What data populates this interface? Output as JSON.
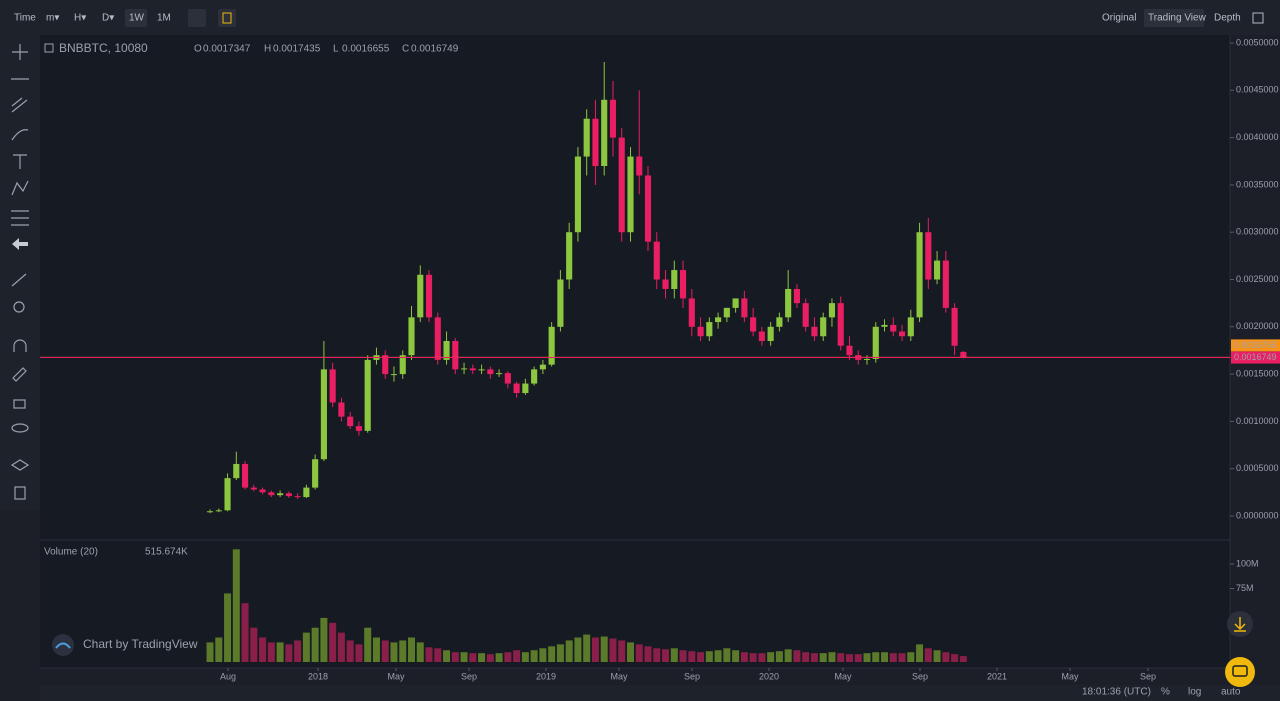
{
  "ui": {
    "toolbar": [
      "Time",
      "m▾",
      "H▾",
      "D▾",
      "1W",
      "1M"
    ],
    "views": [
      "Original",
      "Trading View",
      "Depth"
    ],
    "symbol": "BNBBTC, 10080",
    "ohlc_letters": [
      "O",
      "H",
      "L",
      "C"
    ],
    "ohlc_values": [
      0.0017347,
      0.0017435,
      0.0016655,
      0.0016749
    ],
    "volume_title": "Volume (20)",
    "volume_value": "515.674K",
    "watermark": "Chart by TradingView",
    "status": [
      "18:01:36 (UTC)",
      "%",
      "log",
      "auto"
    ]
  },
  "chart_data": [
    {
      "type": "candlestick",
      "up_color": "#8dc63f",
      "down_color": "#e91e63",
      "open": [
        4e-05,
        5e-05,
        6e-05,
        0.0004,
        0.00055,
        0.0003,
        0.00028,
        0.00025,
        0.00022,
        0.00024,
        0.00021,
        0.0002,
        0.0003,
        0.0006,
        0.00155,
        0.0012,
        0.00105,
        0.00095,
        0.0009,
        0.00165,
        0.0017,
        0.0015,
        0.0015,
        0.0017,
        0.0021,
        0.00255,
        0.0021,
        0.00165,
        0.00185,
        0.00155,
        0.00156,
        0.00154,
        0.00155,
        0.0015,
        0.00151,
        0.0014,
        0.0013,
        0.0014,
        0.00155,
        0.0016,
        0.002,
        0.0025,
        0.003,
        0.0038,
        0.0042,
        0.0037,
        0.0044,
        0.004,
        0.003,
        0.0038,
        0.0036,
        0.0029,
        0.0025,
        0.0024,
        0.0026,
        0.0023,
        0.002,
        0.0019,
        0.00205,
        0.0021,
        0.0022,
        0.0023,
        0.0021,
        0.00195,
        0.00185,
        0.002,
        0.0021,
        0.0024,
        0.00225,
        0.002,
        0.0019,
        0.0021,
        0.00225,
        0.0018,
        0.0017,
        0.00165,
        0.00166,
        0.002,
        0.00202,
        0.00195,
        0.0019,
        0.0021,
        0.003,
        0.0025,
        0.0027,
        0.0022,
        0.0017347
      ],
      "high": [
        7e-05,
        8e-05,
        0.00045,
        0.00068,
        0.00058,
        0.00033,
        0.0003,
        0.00027,
        0.00027,
        0.00026,
        0.00024,
        0.00033,
        0.00065,
        0.00185,
        0.00162,
        0.00125,
        0.0011,
        0.001,
        0.0017,
        0.00178,
        0.00175,
        0.00158,
        0.00175,
        0.00222,
        0.00265,
        0.0026,
        0.00215,
        0.00195,
        0.00188,
        0.00162,
        0.0016,
        0.0016,
        0.00158,
        0.00155,
        0.00153,
        0.00142,
        0.00145,
        0.00158,
        0.00165,
        0.00205,
        0.0026,
        0.0031,
        0.0039,
        0.0043,
        0.0044,
        0.0048,
        0.0046,
        0.0041,
        0.0039,
        0.0045,
        0.0037,
        0.003,
        0.0026,
        0.0027,
        0.0027,
        0.0024,
        0.0021,
        0.0021,
        0.00215,
        0.0022,
        0.00228,
        0.00238,
        0.0022,
        0.002,
        0.00205,
        0.00215,
        0.0026,
        0.00245,
        0.0023,
        0.0021,
        0.00215,
        0.0023,
        0.00232,
        0.0019,
        0.00175,
        0.0017,
        0.00205,
        0.00208,
        0.0021,
        0.00202,
        0.00218,
        0.0031,
        0.00315,
        0.0028,
        0.0028,
        0.00225,
        0.0017435
      ],
      "low": [
        3e-05,
        4e-05,
        5e-05,
        0.00038,
        0.00028,
        0.00026,
        0.00023,
        0.0002,
        0.0002,
        0.00019,
        0.00018,
        0.00019,
        0.00028,
        0.00058,
        0.00115,
        0.001,
        0.00092,
        0.00085,
        0.00088,
        0.0016,
        0.00145,
        0.00142,
        0.00145,
        0.00165,
        0.00205,
        0.00205,
        0.0016,
        0.0016,
        0.0015,
        0.0015,
        0.0015,
        0.0015,
        0.00145,
        0.00147,
        0.00135,
        0.00125,
        0.00128,
        0.00138,
        0.0015,
        0.00158,
        0.00195,
        0.0024,
        0.0029,
        0.0036,
        0.0035,
        0.0036,
        0.0038,
        0.0029,
        0.0029,
        0.0034,
        0.0028,
        0.0024,
        0.0023,
        0.0023,
        0.0022,
        0.0019,
        0.00185,
        0.00185,
        0.00198,
        0.00205,
        0.00215,
        0.00205,
        0.0019,
        0.0018,
        0.0018,
        0.00195,
        0.00205,
        0.0022,
        0.00195,
        0.00185,
        0.00185,
        0.002,
        0.00175,
        0.00165,
        0.0016,
        0.0016,
        0.00162,
        0.00195,
        0.0019,
        0.00185,
        0.00185,
        0.00205,
        0.0024,
        0.00245,
        0.00215,
        0.0017,
        0.0016655
      ],
      "close": [
        5e-05,
        6e-05,
        0.0004,
        0.00055,
        0.0003,
        0.00028,
        0.00025,
        0.00022,
        0.00024,
        0.00021,
        0.0002,
        0.0003,
        0.0006,
        0.00155,
        0.0012,
        0.00105,
        0.00095,
        0.0009,
        0.00165,
        0.0017,
        0.0015,
        0.0015,
        0.0017,
        0.0021,
        0.00255,
        0.0021,
        0.00165,
        0.00185,
        0.00155,
        0.00156,
        0.00154,
        0.00155,
        0.0015,
        0.00151,
        0.0014,
        0.0013,
        0.0014,
        0.00155,
        0.0016,
        0.002,
        0.0025,
        0.003,
        0.0038,
        0.0042,
        0.0037,
        0.0044,
        0.004,
        0.003,
        0.0038,
        0.0036,
        0.0029,
        0.0025,
        0.0024,
        0.0026,
        0.0023,
        0.002,
        0.0019,
        0.00205,
        0.0021,
        0.0022,
        0.0023,
        0.0021,
        0.00195,
        0.00185,
        0.002,
        0.0021,
        0.0024,
        0.00225,
        0.002,
        0.0019,
        0.0021,
        0.00225,
        0.0018,
        0.0017,
        0.00165,
        0.00166,
        0.002,
        0.00202,
        0.00195,
        0.0019,
        0.0021,
        0.003,
        0.0025,
        0.0027,
        0.0022,
        0.0018,
        0.0016749
      ],
      "xlim": [
        -19.41,
        116.44
      ],
      "xticks": [
        {
          "value": 2.05,
          "label": "Aug"
        },
        {
          "value": 12.33,
          "label": "2018"
        },
        {
          "value": 21.23,
          "label": "May"
        },
        {
          "value": 29.57,
          "label": "Sep"
        },
        {
          "value": 38.36,
          "label": "2019"
        },
        {
          "value": 46.69,
          "label": "May"
        },
        {
          "value": 55.02,
          "label": "Sep"
        },
        {
          "value": 63.81,
          "label": "2020"
        },
        {
          "value": 72.26,
          "label": "May"
        },
        {
          "value": 81.05,
          "label": "Sep"
        },
        {
          "value": 89.84,
          "label": "2021"
        },
        {
          "value": 98.17,
          "label": "May"
        },
        {
          "value": 107.08,
          "label": "Sep"
        }
      ],
      "ylim": [
        -0.000254,
        0.005085
      ],
      "yticks": [
        {
          "value": 0,
          "label": "0.0000000"
        },
        {
          "value": 0.0005,
          "label": "0.0005000"
        },
        {
          "value": 0.001,
          "label": "0.0010000"
        },
        {
          "value": 0.0015,
          "label": "0.0015000"
        },
        {
          "value": 0.002,
          "label": "0.0020000"
        },
        {
          "value": 0.0025,
          "label": "0.0025000"
        },
        {
          "value": 0.003,
          "label": "0.0030000"
        },
        {
          "value": 0.0035,
          "label": "0.0035000"
        },
        {
          "value": 0.004,
          "label": "0.0040000"
        },
        {
          "value": 0.0045,
          "label": "0.0045000"
        },
        {
          "value": 0.005,
          "label": "0.0050000"
        }
      ],
      "price_lines": [
        {
          "value": 0.0016765,
          "label": "0.0016765",
          "color": "#f7931a"
        },
        {
          "value": 0.0016749,
          "label": "0.0016749",
          "color": "#e91e63"
        }
      ],
      "grid": false
    },
    {
      "type": "bar",
      "up_color": "#5b7a2a",
      "down_color": "#8a1f4a",
      "values": [
        20,
        25,
        70,
        115,
        60,
        35,
        25,
        20,
        20,
        18,
        22,
        30,
        35,
        45,
        40,
        30,
        22,
        18,
        35,
        25,
        22,
        20,
        22,
        25,
        20,
        15,
        14,
        12,
        10,
        10,
        9,
        9,
        8,
        9,
        10,
        12,
        10,
        12,
        14,
        16,
        18,
        22,
        25,
        28,
        25,
        26,
        24,
        22,
        20,
        18,
        16,
        14,
        13,
        14,
        12,
        11,
        10,
        11,
        12,
        14,
        12,
        10,
        9,
        9,
        10,
        11,
        13,
        12,
        10,
        9,
        9,
        10,
        9,
        8,
        8,
        9,
        10,
        10,
        9,
        9,
        10,
        18,
        14,
        12,
        10,
        8,
        6
      ],
      "xlim": [
        -19.41,
        116.44
      ],
      "ylim": [
        0,
        124.5
      ],
      "yticks": [
        {
          "value": 75,
          "label": "75M"
        },
        {
          "value": 100,
          "label": "100M"
        }
      ]
    }
  ]
}
